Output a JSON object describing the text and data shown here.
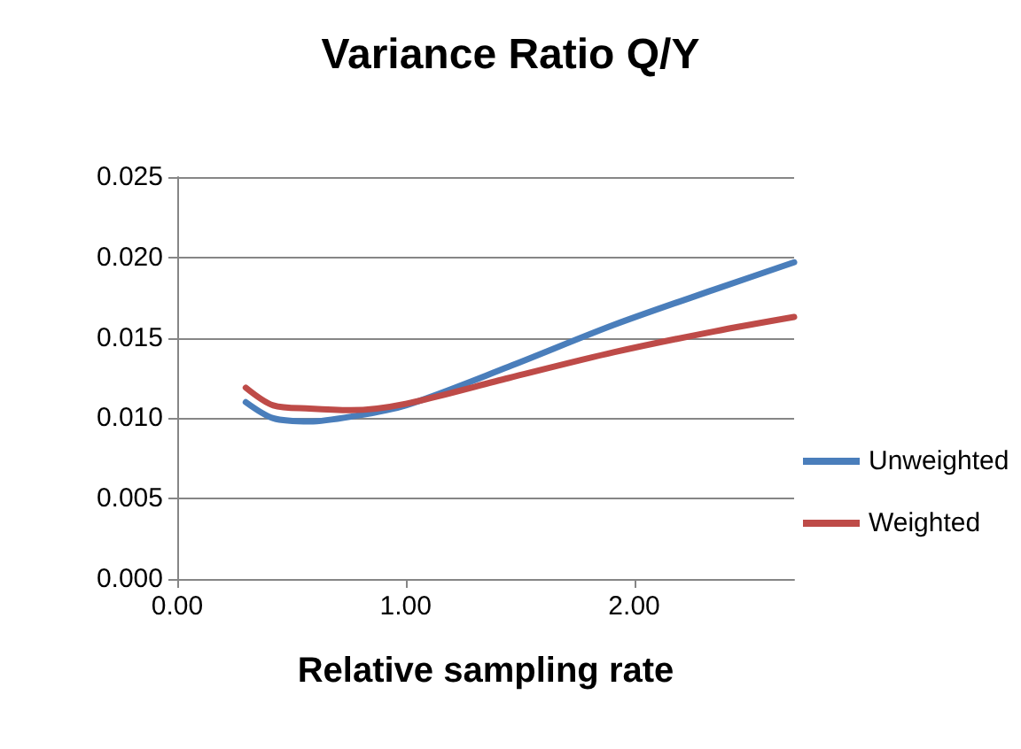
{
  "chart_data": {
    "type": "line",
    "title": "Variance Ratio Q/Y",
    "xlabel": "Relative sampling rate",
    "xlim": [
      0,
      2.7
    ],
    "xticks": [
      {
        "value": 0,
        "label": "0.00"
      },
      {
        "value": 1,
        "label": "1.00"
      },
      {
        "value": 2,
        "label": "2.00"
      }
    ],
    "ylim": [
      0,
      0.025
    ],
    "yticks": [
      {
        "value": 0,
        "label": "0.000"
      },
      {
        "value": 0.005,
        "label": "0.005"
      },
      {
        "value": 0.01,
        "label": "0.010"
      },
      {
        "value": 0.015,
        "label": "0.015"
      },
      {
        "value": 0.02,
        "label": "0.020"
      },
      {
        "value": 0.025,
        "label": "0.025"
      }
    ],
    "x": [
      0.3,
      0.42,
      0.58,
      0.76,
      1.0,
      1.45,
      1.91,
      2.35,
      2.7
    ],
    "series": [
      {
        "name": "Unweighted",
        "color": "#4a7ebb",
        "values": [
          0.011,
          0.01,
          0.0098,
          0.0101,
          0.0108,
          0.0132,
          0.0158,
          0.018,
          0.0197
        ]
      },
      {
        "name": "Weighted",
        "color": "#be4b48",
        "values": [
          0.0119,
          0.0108,
          0.0106,
          0.0105,
          0.0109,
          0.0125,
          0.0141,
          0.0154,
          0.0163
        ]
      }
    ],
    "grid": "y",
    "legend": "right",
    "marker": "none",
    "line_style": "solid"
  }
}
